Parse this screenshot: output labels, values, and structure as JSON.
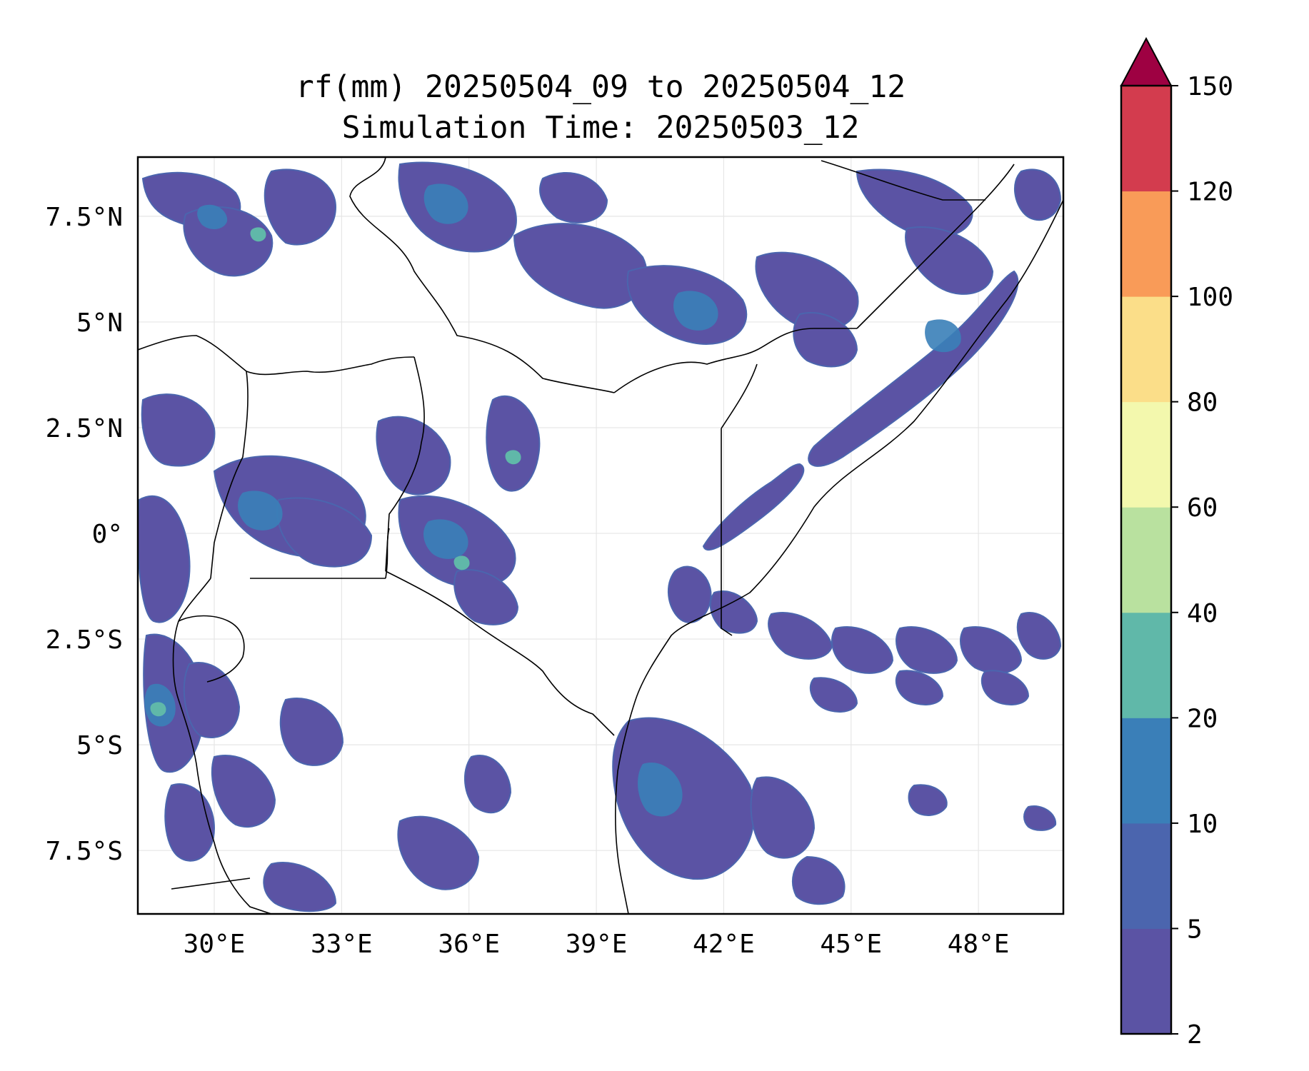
{
  "title": {
    "line1": "rf(mm) 20250504_09 to 20250504_12",
    "line2": "Simulation Time: 20250503_12"
  },
  "map": {
    "lon_range": [
      28.2,
      50.0
    ],
    "lat_range": [
      -9.0,
      8.9
    ],
    "lon_ticks": [
      {
        "value": 30,
        "label": "30°E"
      },
      {
        "value": 33,
        "label": "33°E"
      },
      {
        "value": 36,
        "label": "36°E"
      },
      {
        "value": 39,
        "label": "39°E"
      },
      {
        "value": 42,
        "label": "42°E"
      },
      {
        "value": 45,
        "label": "45°E"
      },
      {
        "value": 48,
        "label": "48°E"
      }
    ],
    "lat_ticks": [
      {
        "value": 7.5,
        "label": "7.5°N"
      },
      {
        "value": 5,
        "label": "5°N"
      },
      {
        "value": 2.5,
        "label": "2.5°N"
      },
      {
        "value": 0,
        "label": "0°"
      },
      {
        "value": -2.5,
        "label": "2.5°S"
      },
      {
        "value": -5,
        "label": "5°S"
      },
      {
        "value": -7.5,
        "label": "7.5°S"
      }
    ],
    "grid": true
  },
  "colorbar": {
    "levels": [
      2,
      5,
      10,
      20,
      40,
      60,
      80,
      100,
      120,
      150
    ],
    "colors": [
      "#5b53a4",
      "#4b65ae",
      "#3a7fb8",
      "#60b8a9",
      "#b9e19f",
      "#f3f8ad",
      "#fbde89",
      "#f99b58",
      "#d33c4e"
    ],
    "extend_color": "#9e0142",
    "extend": "max"
  }
}
